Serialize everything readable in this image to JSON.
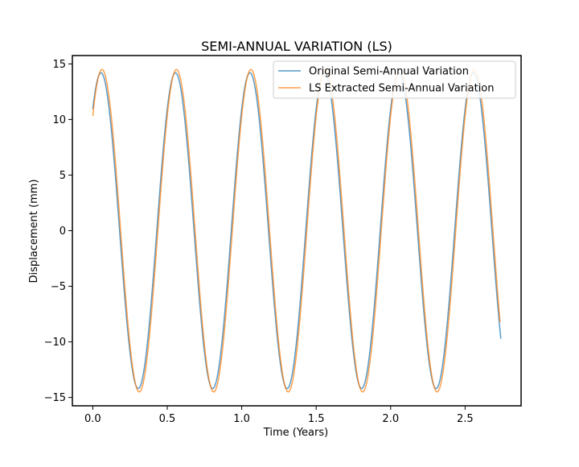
{
  "chart_data": {
    "type": "line",
    "title": "SEMI-ANNUAL VARIATION (LS)",
    "xlabel": "Time (Years)",
    "ylabel": "Displacement (mm)",
    "xlim": [
      -0.137,
      2.876
    ],
    "ylim": [
      -15.75,
      15.75
    ],
    "x_ticks": [
      0.0,
      0.5,
      1.0,
      1.5,
      2.0,
      2.5
    ],
    "x_tick_labels": [
      "0.0",
      "0.5",
      "1.0",
      "1.5",
      "2.0",
      "2.5"
    ],
    "y_ticks": [
      -15,
      -10,
      -5,
      0,
      5,
      10,
      15
    ],
    "y_tick_labels": [
      "−15",
      "−10",
      "−5",
      "0",
      "5",
      "10",
      "15"
    ],
    "grid": false,
    "legend_position": "top-right",
    "series": [
      {
        "name": "Original Semi-Annual Variation",
        "color": "#1f77b4",
        "model": {
          "amplitude": 14.2,
          "period": 0.5,
          "peak_time": 0.055,
          "x_start": 0.0,
          "x_end": 2.74
        }
      },
      {
        "name": "LS Extracted Semi-Annual Variation",
        "color": "#ff7f0e",
        "model": {
          "amplitude": 14.5,
          "period": 0.5,
          "peak_time": 0.062,
          "x_start": 0.0,
          "x_end": 2.735
        }
      }
    ]
  }
}
